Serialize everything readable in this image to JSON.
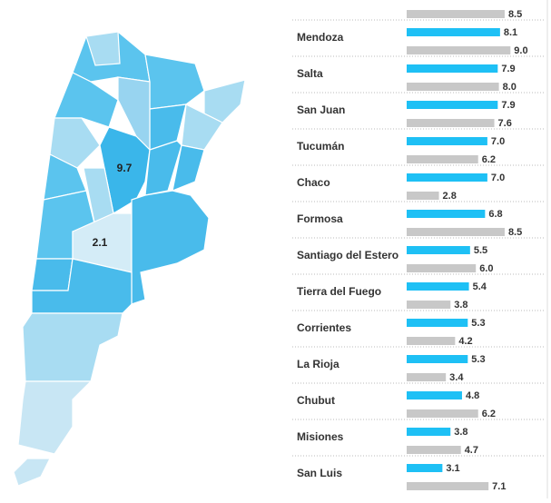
{
  "map": {
    "labels": [
      9.7,
      2.1
    ]
  },
  "rows": [
    {
      "name": null,
      "values": [
        null,
        8.5
      ],
      "value_labels": [
        null,
        "8.5"
      ]
    },
    {
      "name": "Mendoza",
      "values": [
        8.1,
        9.0
      ],
      "value_labels": [
        "8.1",
        "9.0"
      ]
    },
    {
      "name": "Salta",
      "values": [
        7.9,
        8.0
      ],
      "value_labels": [
        "7.9",
        "8.0"
      ]
    },
    {
      "name": "San Juan",
      "values": [
        7.9,
        7.6
      ],
      "value_labels": [
        "7.9",
        "7.6"
      ]
    },
    {
      "name": "Tucumán",
      "values": [
        7.0,
        6.2
      ],
      "value_labels": [
        "7.0",
        "6.2"
      ]
    },
    {
      "name": "Chaco",
      "values": [
        7.0,
        2.8
      ],
      "value_labels": [
        "7.0",
        "2.8"
      ]
    },
    {
      "name": "Formosa",
      "values": [
        6.8,
        8.5
      ],
      "value_labels": [
        "6.8",
        "8.5"
      ]
    },
    {
      "name": "Santiago del Estero",
      "values": [
        5.5,
        6.0
      ],
      "value_labels": [
        "5.5",
        "6.0"
      ]
    },
    {
      "name": "Tierra del Fuego",
      "values": [
        5.4,
        3.8
      ],
      "value_labels": [
        "5.4",
        "3.8"
      ]
    },
    {
      "name": "Corrientes",
      "values": [
        5.3,
        4.2
      ],
      "value_labels": [
        "5.3",
        "4.2"
      ]
    },
    {
      "name": "La Rioja",
      "values": [
        5.3,
        3.4
      ],
      "value_labels": [
        "5.3",
        "3.4"
      ]
    },
    {
      "name": "Chubut",
      "values": [
        4.8,
        6.2
      ],
      "value_labels": [
        "4.8",
        "6.2"
      ]
    },
    {
      "name": "Misiones",
      "values": [
        3.8,
        4.7
      ],
      "value_labels": [
        "3.8",
        "4.7"
      ]
    },
    {
      "name": "San Luis",
      "values": [
        3.1,
        7.1
      ],
      "value_labels": [
        "3.1",
        "7.1"
      ]
    }
  ]
}
